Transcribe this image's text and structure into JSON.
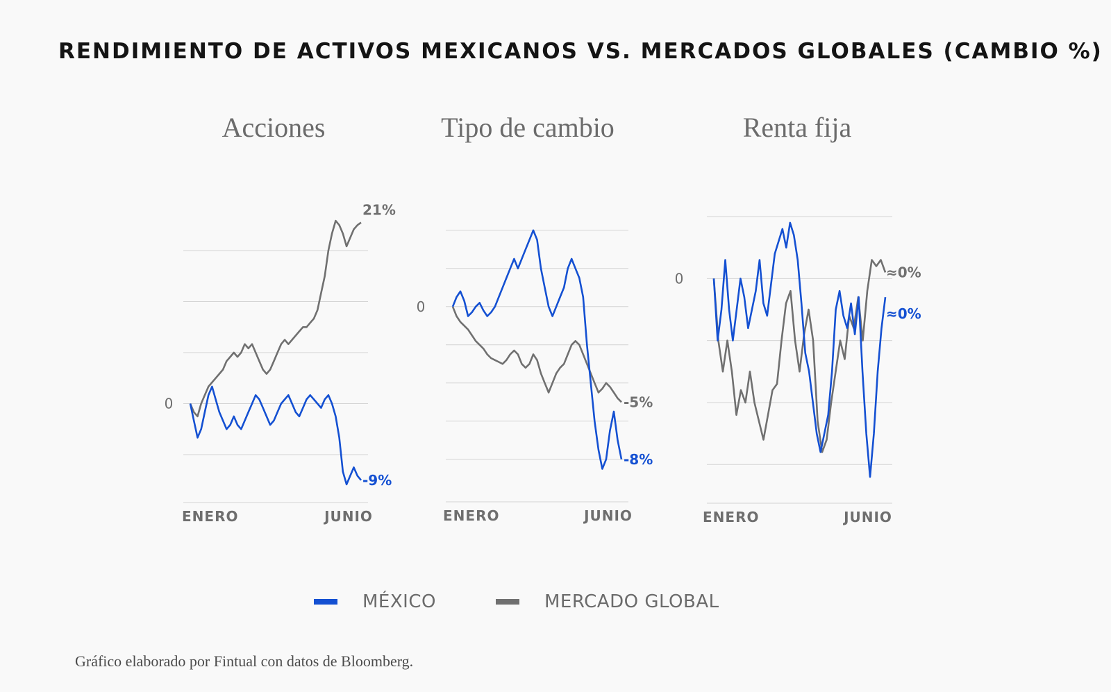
{
  "title": "RENDIMIENTO DE ACTIVOS MEXICANOS VS. MERCADOS GLOBALES (CAMBIO %)",
  "legend": [
    {
      "name": "MÉXICO",
      "color": "#1450d2"
    },
    {
      "name": "MERCADO GLOBAL",
      "color": "#707070"
    }
  ],
  "source": "Gráfico elaborado por Fintual con datos de Bloomberg.",
  "colors": {
    "mexico": "#1450d2",
    "global": "#707070",
    "grid": "#d4d4d4"
  },
  "chart_data": [
    {
      "type": "line",
      "title": "Acciones",
      "xlabel": "",
      "ylabel": "",
      "x_ticks": [
        "ENERO",
        "JUNIO"
      ],
      "y_tick_label": "0",
      "ylim": [
        -10,
        22
      ],
      "end_labels": {
        "mexico": "-9%",
        "global": "21%"
      },
      "series": [
        {
          "name": "MÉXICO",
          "key": "mexico",
          "values": [
            0,
            -2,
            -4,
            -3,
            -1,
            1,
            2,
            0.5,
            -1,
            -2,
            -3,
            -2.5,
            -1.5,
            -2.5,
            -3,
            -2,
            -1,
            0,
            1,
            0.5,
            -0.5,
            -1.5,
            -2.5,
            -2,
            -1,
            0,
            0.5,
            1,
            0,
            -1,
            -1.5,
            -0.5,
            0.5,
            1,
            0.5,
            0,
            -0.5,
            0.5,
            1,
            0,
            -1.5,
            -4,
            -8,
            -9.5,
            -8.5,
            -7.5,
            -8.5,
            -9
          ]
        },
        {
          "name": "MERCADO GLOBAL",
          "key": "global",
          "values": [
            0,
            -1,
            -1.5,
            0,
            1,
            2,
            2.5,
            3,
            3.5,
            4,
            5,
            5.5,
            6,
            5.5,
            6,
            7,
            6.5,
            7,
            6,
            5,
            4,
            3.5,
            4,
            5,
            6,
            7,
            7.5,
            7,
            7.5,
            8,
            8.5,
            9,
            9,
            9.5,
            10,
            11,
            13,
            15,
            18,
            20,
            21.5,
            21,
            20,
            18.5,
            19.5,
            20.5,
            21,
            21.3
          ]
        }
      ]
    },
    {
      "type": "line",
      "title": "Tipo de cambio",
      "xlabel": "",
      "ylabel": "",
      "x_ticks": [
        "ENERO",
        "JUNIO"
      ],
      "y_tick_label": "0",
      "ylim": [
        -9.5,
        4.5
      ],
      "end_labels": {
        "mexico": "-8%",
        "global": "-5%"
      },
      "series": [
        {
          "name": "MÉXICO",
          "key": "mexico",
          "values": [
            0,
            0.5,
            0.8,
            0.3,
            -0.5,
            -0.3,
            0,
            0.2,
            -0.2,
            -0.5,
            -0.3,
            0,
            0.5,
            1,
            1.5,
            2,
            2.5,
            2,
            2.5,
            3,
            3.5,
            4,
            3.5,
            2,
            1,
            0,
            -0.5,
            0,
            0.5,
            1,
            2,
            2.5,
            2,
            1.5,
            0.5,
            -2,
            -4,
            -6,
            -7.5,
            -8.5,
            -8,
            -6.5,
            -5.5,
            -7,
            -8
          ]
        },
        {
          "name": "MERCADO GLOBAL",
          "key": "global",
          "values": [
            0,
            -0.5,
            -0.8,
            -1,
            -1.2,
            -1.5,
            -1.8,
            -2,
            -2.2,
            -2.5,
            -2.7,
            -2.8,
            -2.9,
            -3,
            -2.8,
            -2.5,
            -2.3,
            -2.5,
            -3,
            -3.2,
            -3,
            -2.5,
            -2.8,
            -3.5,
            -4,
            -4.5,
            -4,
            -3.5,
            -3.2,
            -3,
            -2.5,
            -2,
            -1.8,
            -2,
            -2.5,
            -3,
            -3.5,
            -4,
            -4.5,
            -4.3,
            -4,
            -4.2,
            -4.5,
            -4.8,
            -5
          ]
        }
      ]
    },
    {
      "type": "line",
      "title": "Renta fija",
      "xlabel": "",
      "ylabel": "",
      "x_ticks": [
        "ENERO",
        "JUNIO"
      ],
      "y_tick_label": "0",
      "ylim": [
        -3.4,
        1
      ],
      "end_labels": {
        "mexico": "≈0%",
        "global": "≈0%"
      },
      "series": [
        {
          "name": "MÉXICO",
          "key": "mexico",
          "values": [
            0,
            -1,
            -0.5,
            0.3,
            -0.5,
            -1,
            -0.5,
            0,
            -0.3,
            -0.8,
            -0.5,
            -0.2,
            0.3,
            -0.4,
            -0.6,
            -0.1,
            0.4,
            0.6,
            0.8,
            0.5,
            0.9,
            0.7,
            0.3,
            -0.4,
            -1.2,
            -1.5,
            -2,
            -2.5,
            -2.8,
            -2.5,
            -2.2,
            -1.5,
            -0.5,
            -0.2,
            -0.6,
            -0.8,
            -0.4,
            -0.9,
            -0.3,
            -1.5,
            -2.5,
            -3.2,
            -2.5,
            -1.5,
            -0.8,
            -0.3
          ]
        },
        {
          "name": "MERCADO GLOBAL",
          "key": "global",
          "values": [
            0,
            -1,
            -1.5,
            -1,
            -1.5,
            -2.2,
            -1.8,
            -2,
            -1.5,
            -2,
            -2.3,
            -2.6,
            -2.2,
            -1.8,
            -1.7,
            -1,
            -0.4,
            -0.2,
            -1,
            -1.5,
            -0.9,
            -0.5,
            -1,
            -2.3,
            -2.8,
            -2.6,
            -2,
            -1.5,
            -1,
            -1.3,
            -0.6,
            -0.8,
            -0.3,
            -1,
            -0.2,
            0.3,
            0.2,
            0.3,
            0.1
          ]
        }
      ]
    }
  ]
}
